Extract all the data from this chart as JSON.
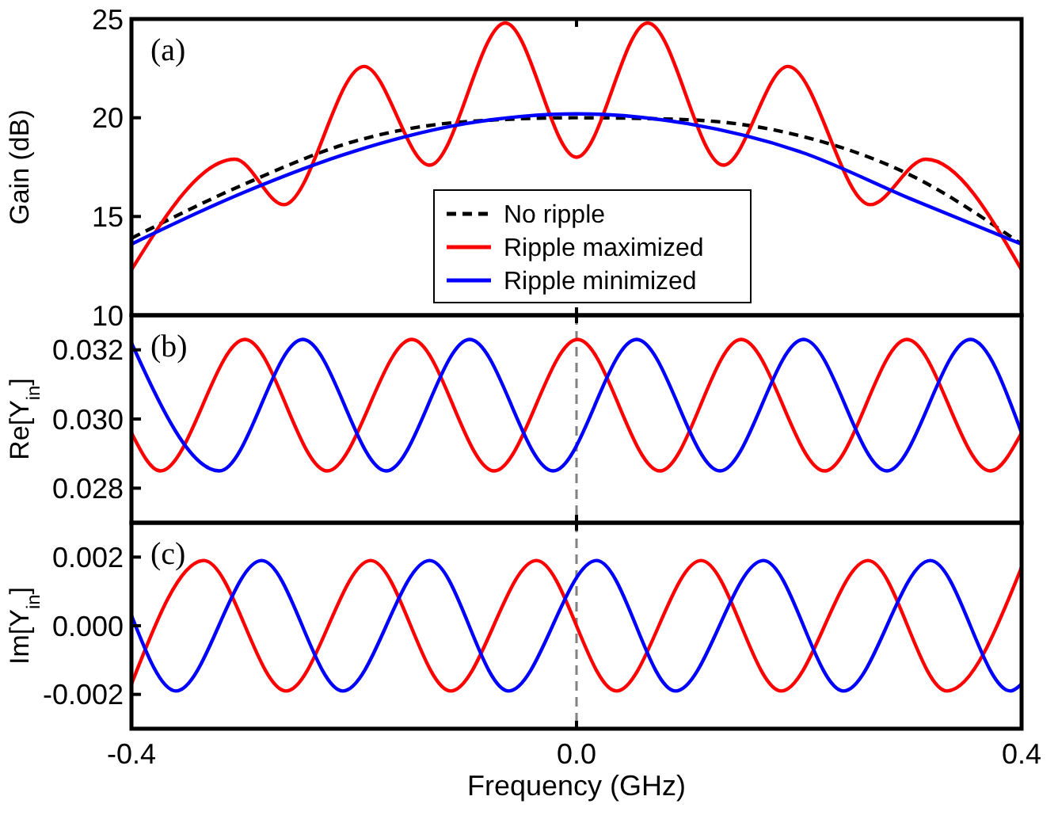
{
  "chart_data": [
    {
      "type": "line",
      "ylabel": "Gain (dB)",
      "annotations": [
        "(a)"
      ],
      "xlim": [
        -0.4,
        0.4
      ],
      "ylim": [
        10,
        25
      ],
      "yticks": [
        10,
        15,
        20,
        25
      ],
      "tick_labels": "y",
      "legend": "bottom",
      "grid": false,
      "series": [
        {
          "name": "No ripple",
          "color": "#000000",
          "line_style": "dashed",
          "x": [
            -0.4,
            -0.3,
            -0.2,
            -0.1,
            0,
            0.1,
            0.2,
            0.3,
            0.4
          ],
          "values": [
            13.9,
            16.6,
            18.8,
            19.8,
            20.0,
            19.9,
            19.1,
            17.1,
            13.6
          ]
        },
        {
          "name": "Ripple maximized",
          "color": "#ff0000",
          "line_style": "solid",
          "x": [
            -0.4,
            -0.307,
            -0.263,
            -0.191,
            -0.132,
            -0.064,
            0,
            0.064,
            0.132,
            0.19,
            0.264,
            0.314,
            0.4
          ],
          "values": [
            12.3,
            17.9,
            15.6,
            22.6,
            17.6,
            24.8,
            18.0,
            24.8,
            17.6,
            22.6,
            15.6,
            17.9,
            12.3
          ]
        },
        {
          "name": "Ripple minimized",
          "color": "#0000ff",
          "line_style": "solid",
          "x": [
            -0.4,
            -0.3,
            -0.2,
            -0.1,
            0,
            0.1,
            0.2,
            0.3,
            0.4
          ],
          "values": [
            13.6,
            16.2,
            18.3,
            19.7,
            20.2,
            19.7,
            18.3,
            15.9,
            13.6
          ]
        }
      ]
    },
    {
      "type": "line",
      "ylabel": "Re[Y$_{in}$]",
      "annotations": [
        "(b)"
      ],
      "xlim": [
        -0.4,
        0.4
      ],
      "ylim": [
        0.027,
        0.033
      ],
      "yticks": [
        0.028,
        {
          "value": 0.03,
          "label": "0.030"
        },
        0.032
      ],
      "tick_labels": "y",
      "ref_lines": [
        {
          "axis": "x",
          "value": 0,
          "color": "#808080",
          "line_style": "dashed"
        }
      ],
      "series": [
        {
          "color": "#ff0000",
          "x": [
            -0.4,
            -0.374,
            -0.298,
            -0.224,
            -0.148,
            -0.074,
            0.001,
            0.075,
            0.148,
            0.223,
            0.297,
            0.372,
            0.4
          ],
          "values": [
            0.0296,
            0.0285,
            0.0323,
            0.0285,
            0.0323,
            0.0285,
            0.0323,
            0.0285,
            0.0323,
            0.0285,
            0.0323,
            0.0285,
            0.0296
          ]
        },
        {
          "color": "#0000ff",
          "x": [
            -0.4,
            -0.321,
            -0.246,
            -0.171,
            -0.096,
            -0.021,
            0.054,
            0.129,
            0.204,
            0.279,
            0.354,
            0.4
          ],
          "values": [
            0.0322,
            0.0285,
            0.0323,
            0.0285,
            0.0323,
            0.0285,
            0.0323,
            0.0285,
            0.0323,
            0.0285,
            0.0323,
            0.0296
          ]
        }
      ]
    },
    {
      "type": "line",
      "ylabel": "Im[Y$_{in}$]",
      "xlabel": "Frequency (GHz)",
      "annotations": [
        "(c)"
      ],
      "xlim": [
        -0.4,
        0.4
      ],
      "xticks": [
        -0.4,
        {
          "value": 0,
          "label": "0.0"
        },
        0.4
      ],
      "ylim": [
        -0.003,
        0.003
      ],
      "yticks": [
        -0.002,
        {
          "value": 0,
          "label": "0.000"
        },
        0.002
      ],
      "ref_lines": [
        {
          "axis": "x",
          "value": 0,
          "color": "#808080",
          "line_style": "dashed"
        }
      ],
      "series": [
        {
          "color": "#ff0000",
          "x": [
            -0.4,
            -0.335,
            -0.261,
            -0.185,
            -0.113,
            -0.036,
            0.036,
            0.112,
            0.184,
            0.262,
            0.333,
            0.4
          ],
          "values": [
            -0.0017,
            0.0019,
            -0.0019,
            0.0019,
            -0.0019,
            0.0019,
            -0.0019,
            0.0019,
            -0.0019,
            0.0019,
            -0.0019,
            0.0017
          ]
        },
        {
          "color": "#0000ff",
          "x": [
            -0.4,
            -0.36,
            -0.283,
            -0.21,
            -0.132,
            -0.061,
            0.018,
            0.089,
            0.168,
            0.24,
            0.318,
            0.39,
            0.4
          ],
          "values": [
            0.0003,
            -0.0019,
            0.0019,
            -0.0019,
            0.0019,
            -0.0019,
            0.0019,
            -0.0019,
            0.0019,
            -0.0019,
            0.0019,
            -0.0019,
            -0.0017
          ]
        }
      ]
    }
  ]
}
